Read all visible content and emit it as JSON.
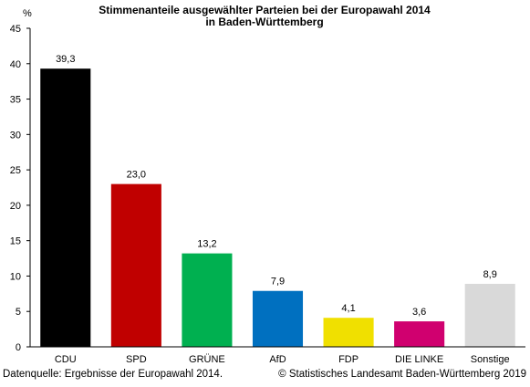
{
  "chart_data": {
    "type": "bar",
    "title": "Stimmenanteile ausgewählter Parteien bei der Europawahl 2014",
    "subtitle": "in Baden-Württemberg",
    "ylabel": "%",
    "ylim": [
      0,
      45
    ],
    "yticks": [
      "0",
      "5",
      "10",
      "15",
      "20",
      "25",
      "30",
      "35",
      "40",
      "45"
    ],
    "ytick_values": [
      0,
      5,
      10,
      15,
      20,
      25,
      30,
      35,
      40,
      45
    ],
    "grid": false,
    "categories": [
      "CDU",
      "SPD",
      "GRÜNE",
      "AfD",
      "FDP",
      "DIE LINKE",
      "Sonstige"
    ],
    "values": [
      39.3,
      23.0,
      13.2,
      7.9,
      4.1,
      3.6,
      8.9
    ],
    "value_labels": [
      "39,3",
      "23,0",
      "13,2",
      "7,9",
      "4,1",
      "3,6",
      "8,9"
    ],
    "colors": [
      "#000000",
      "#c00000",
      "#00b050",
      "#0070c0",
      "#f0e000",
      "#d0006f",
      "#d9d9d9"
    ]
  },
  "footer": {
    "source": "Datenquelle: Ergebnisse der Europawahl 2014.",
    "copyright": "© Statistisches Landesamt Baden-Württemberg 2019"
  }
}
